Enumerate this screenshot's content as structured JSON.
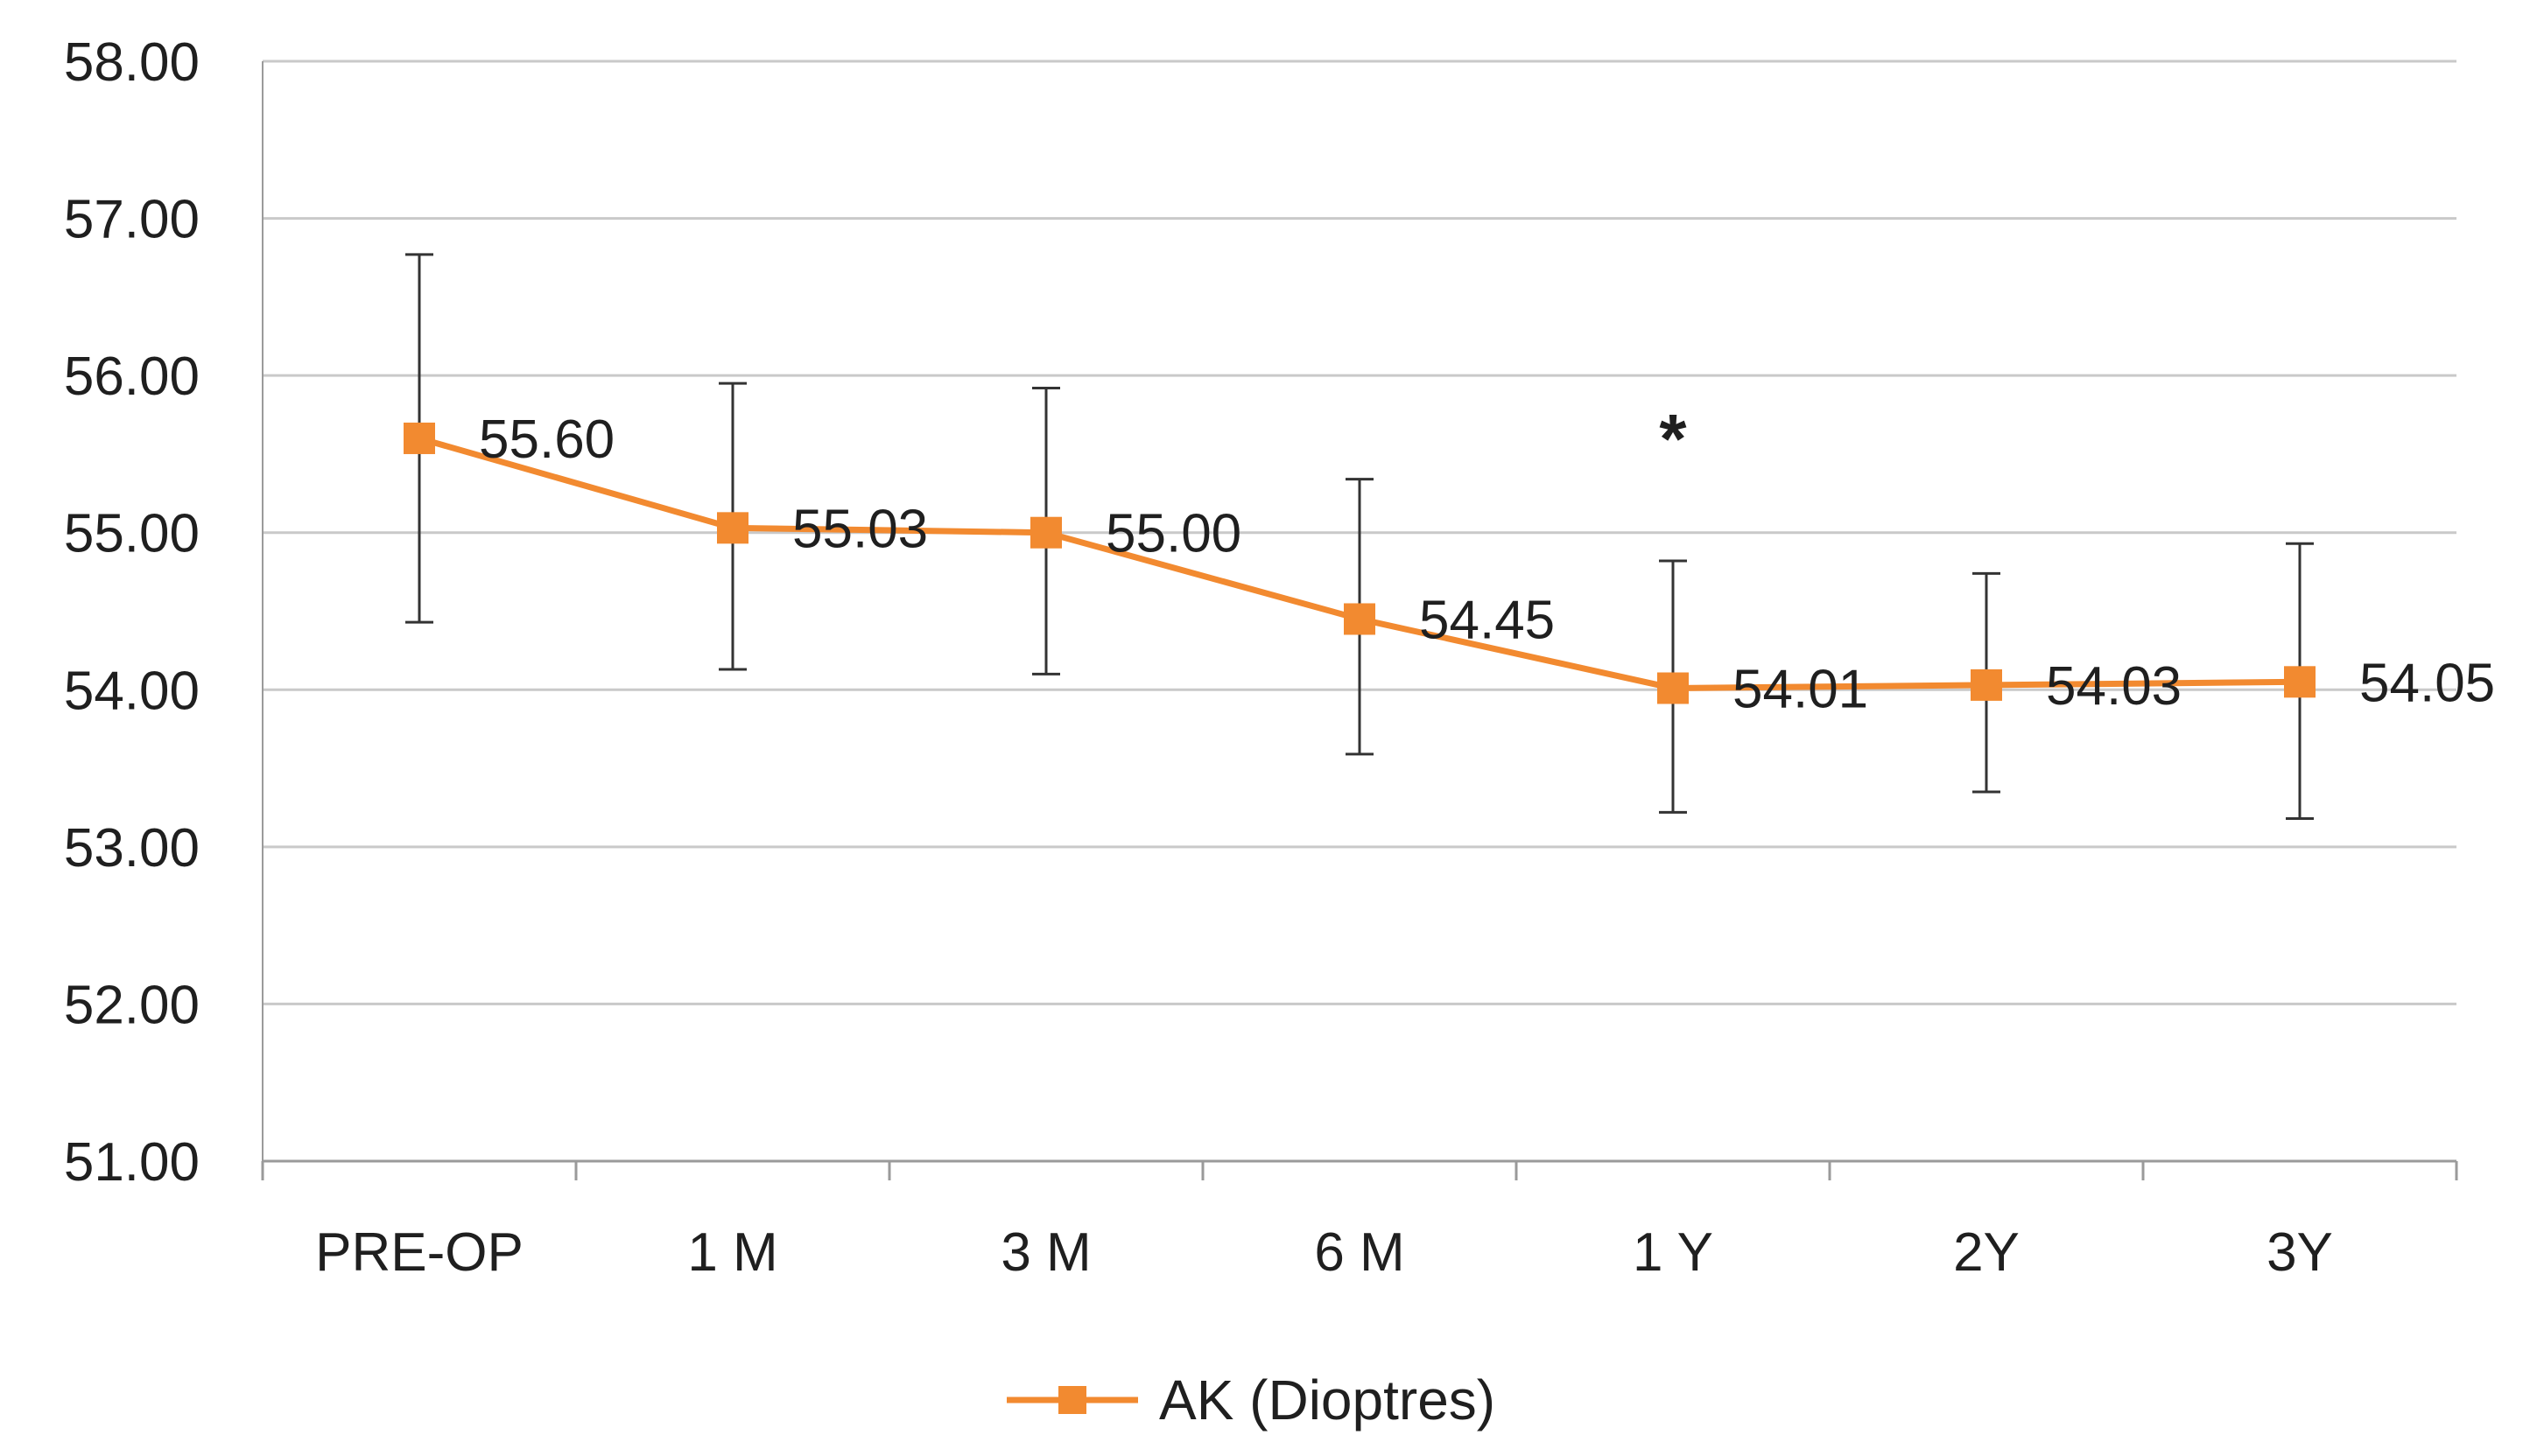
{
  "chart_data": {
    "type": "line",
    "title": "",
    "xlabel": "",
    "ylabel": "",
    "categories": [
      "PRE-OP",
      "1 M",
      "3 M",
      "6 M",
      "1 Y",
      "2Y",
      "3Y"
    ],
    "series": [
      {
        "name": "AK (Dioptres)",
        "color": "#f28a30",
        "values": [
          55.6,
          55.03,
          55.0,
          54.45,
          54.01,
          54.03,
          54.05
        ],
        "labels": [
          "55.60",
          "55.03",
          "55.00",
          "54.45",
          "54.01",
          "54.03",
          "54.05"
        ],
        "error_upper": [
          56.77,
          55.95,
          55.92,
          55.34,
          54.82,
          54.74,
          54.93
        ],
        "error_lower": [
          54.43,
          54.13,
          54.1,
          53.59,
          53.22,
          53.35,
          53.18
        ]
      }
    ],
    "ylim": [
      51.0,
      58.0
    ],
    "yticks": [
      "51.00",
      "52.00",
      "53.00",
      "54.00",
      "55.00",
      "56.00",
      "57.00",
      "58.00"
    ],
    "ytick_values": [
      51,
      52,
      53,
      54,
      55,
      56,
      57,
      58
    ],
    "grid": true,
    "legend": "bottom",
    "annotations": [
      {
        "text": "*",
        "category": "1 Y",
        "y": 55.6
      }
    ],
    "gridline_color": "#c9c9c9",
    "axis_color": "#9a9a9a",
    "errorbar_color": "#333333"
  }
}
